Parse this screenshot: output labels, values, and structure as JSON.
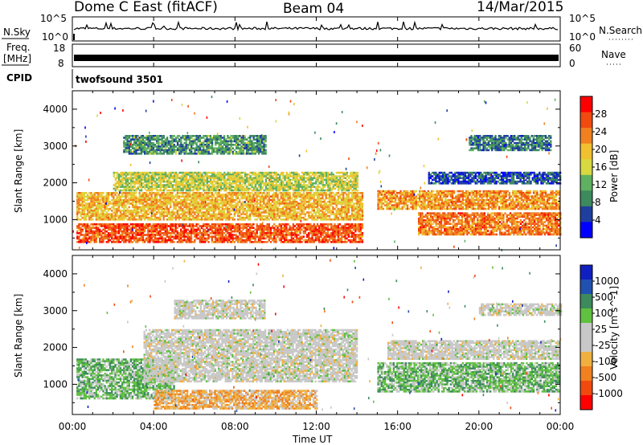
{
  "header": {
    "station": "Dome C East (fitACF)",
    "beam": "Beam 04",
    "date": "14/Mar/2015"
  },
  "aux_panels": {
    "nsky_label": "N.Sky",
    "nsky_ticks": [
      "10^5",
      "10^0"
    ],
    "nsearch_label": "N.Search",
    "nsearch_right_ticks": [
      "10^5",
      "10^0"
    ],
    "freq_label": "Freq.",
    "freq_unit": "[MHz]",
    "freq_ticks": [
      "18",
      "8"
    ],
    "nave_label": "Nave",
    "nave_ticks": [
      "60",
      "0"
    ],
    "cpid_label": "CPID",
    "cpid_value": "twofsound 3501"
  },
  "colors": {
    "power_scale": [
      "#0000ff",
      "#1f3f9f",
      "#3d8a5d",
      "#5fb060",
      "#d8d840",
      "#f0c030",
      "#f08020",
      "#f04a10",
      "#ff0000"
    ],
    "velocity_scale": [
      "#ff0000",
      "#f04a10",
      "#f08020",
      "#f0b040",
      "#c8c8c8",
      "#c8c8c8",
      "#60c040",
      "#3d8a5d",
      "#2050b0",
      "#1020c0"
    ]
  },
  "chart_data": [
    {
      "type": "heatmap",
      "name": "power",
      "ylabel": "Slant Range [km]",
      "xlabel": "Time UT",
      "x_ticks": [
        "00:00",
        "04:00",
        "08:00",
        "12:00",
        "16:00",
        "20:00",
        "00:00"
      ],
      "y_ticks": [
        1000,
        2000,
        3000,
        4000
      ],
      "xlim_hours": [
        0,
        24
      ],
      "ylim_km": [
        180,
        4500
      ],
      "colorbar_label": "Power [dB]",
      "colorbar_ticks": [
        4,
        8,
        12,
        16,
        20,
        24,
        28
      ],
      "bands": [
        {
          "x0": 0.2,
          "x1": 14.3,
          "y0": 400,
          "y1": 900,
          "value": 26
        },
        {
          "x0": 0.2,
          "x1": 14.3,
          "y0": 1000,
          "y1": 1750,
          "value": 20
        },
        {
          "x0": 2.0,
          "x1": 14.0,
          "y0": 1800,
          "y1": 2300,
          "value": 16
        },
        {
          "x0": 2.5,
          "x1": 9.5,
          "y0": 2800,
          "y1": 3300,
          "value": 10
        },
        {
          "x0": 15.0,
          "x1": 24.0,
          "y0": 1300,
          "y1": 1800,
          "value": 22
        },
        {
          "x0": 17.0,
          "x1": 24.0,
          "y0": 600,
          "y1": 1200,
          "value": 24
        },
        {
          "x0": 17.5,
          "x1": 24.0,
          "y0": 2000,
          "y1": 2300,
          "value": 6
        },
        {
          "x0": 19.5,
          "x1": 23.5,
          "y0": 2900,
          "y1": 3300,
          "value": 8
        }
      ]
    },
    {
      "type": "heatmap",
      "name": "velocity",
      "ylabel": "Slant Range [km]",
      "xlabel": "Time UT",
      "x_ticks": [
        "00:00",
        "04:00",
        "08:00",
        "12:00",
        "16:00",
        "20:00",
        "00:00"
      ],
      "y_ticks": [
        1000,
        2000,
        3000,
        4000
      ],
      "xlim_hours": [
        0,
        24
      ],
      "ylim_km": [
        180,
        4500
      ],
      "colorbar_label": "Velocity [m s^-1]",
      "colorbar_ticks": [
        "1000",
        "500",
        "100",
        "25",
        "-25",
        "-100",
        "-500",
        "-1000"
      ],
      "bands": [
        {
          "x0": 0.2,
          "x1": 5.0,
          "y0": 600,
          "y1": 1700,
          "value": 300
        },
        {
          "x0": 4.0,
          "x1": 12.0,
          "y0": 350,
          "y1": 850,
          "value": -300
        },
        {
          "x0": 3.5,
          "x1": 14.0,
          "y0": 1100,
          "y1": 2500,
          "value": 0
        },
        {
          "x0": 5.0,
          "x1": 9.5,
          "y0": 2800,
          "y1": 3300,
          "value": 0
        },
        {
          "x0": 15.0,
          "x1": 24.0,
          "y0": 800,
          "y1": 1600,
          "value": 300
        },
        {
          "x0": 15.5,
          "x1": 24.0,
          "y0": 1700,
          "y1": 2200,
          "value": 0
        },
        {
          "x0": 20.0,
          "x1": 24.0,
          "y0": 2900,
          "y1": 3200,
          "value": 0
        }
      ]
    }
  ]
}
